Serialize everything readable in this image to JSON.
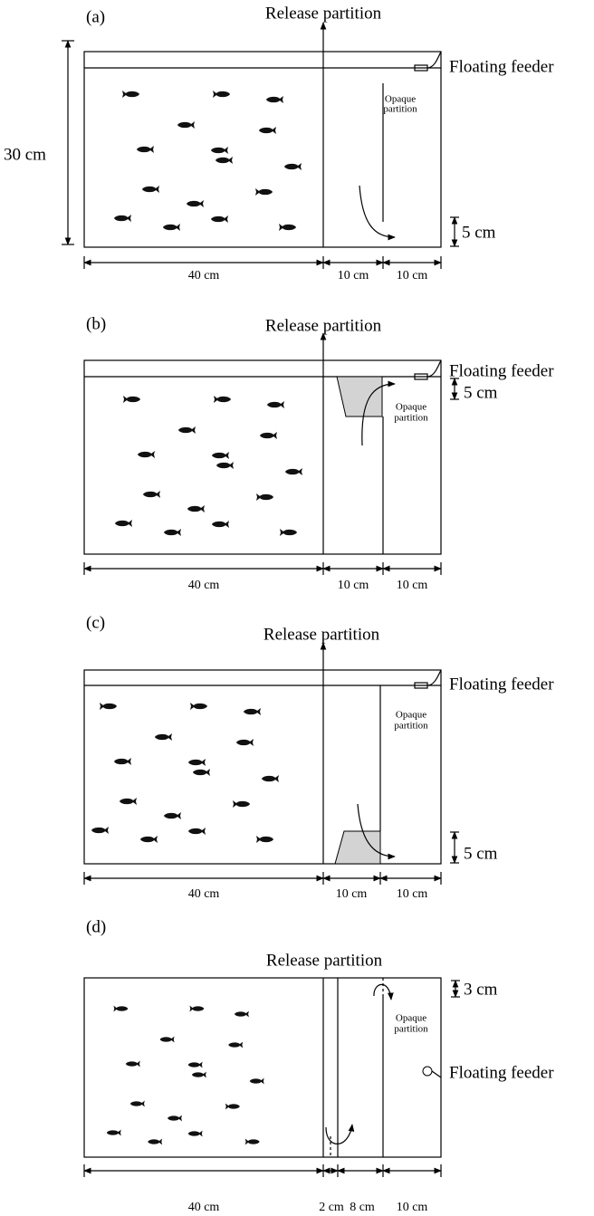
{
  "panels": [
    {
      "label": "(a)",
      "release": "Release partition",
      "feeder": "Floating feeder",
      "opaque": [
        "Opaque",
        "partition"
      ],
      "height": "30 cm",
      "depth": "5 cm",
      "widths": [
        "40 cm",
        "10 cm",
        "10 cm"
      ]
    },
    {
      "label": "(b)",
      "release": "Release partition",
      "feeder": "Floating feeder",
      "opaque": [
        "Opaque",
        "partition"
      ],
      "depth": "5 cm",
      "widths": [
        "40 cm",
        "10 cm",
        "10 cm"
      ]
    },
    {
      "label": "(c)",
      "release": "Release partition",
      "feeder": "Floating feeder",
      "opaque": [
        "Opaque",
        "partition"
      ],
      "depth": "5 cm",
      "widths": [
        "40 cm",
        "10 cm",
        "10 cm"
      ]
    },
    {
      "label": "(d)",
      "release": "Release partition",
      "feeder": "Floating feeder",
      "opaque": [
        "Opaque",
        "partition"
      ],
      "depth": "3 cm",
      "widths": [
        "40 cm",
        "2 cm",
        "8 cm",
        "10 cm"
      ]
    }
  ]
}
